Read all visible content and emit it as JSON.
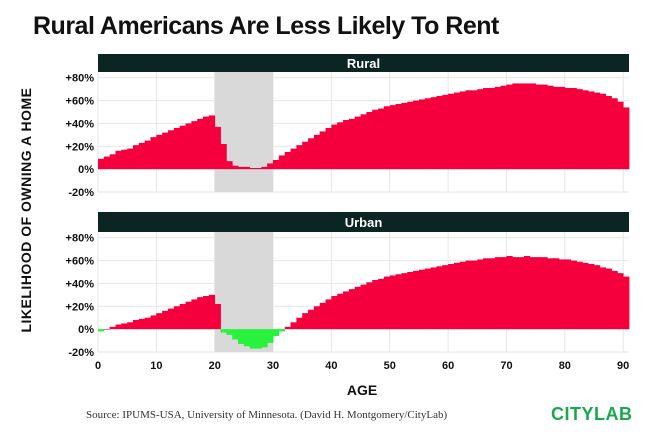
{
  "title": "Rural Americans Are Less Likely To Rent",
  "source": "Source: IPUMS-USA, University of Minnesota. (David H. Montgomery/CityLab)",
  "logo": "CITYLAB",
  "colors": {
    "positive": "#f5003c",
    "negative": "#29f23c",
    "shade": "#d9d9d9",
    "header": "#0b2622",
    "grid": "#e6e6e6"
  },
  "chart_data": [
    {
      "type": "bar",
      "title": "Rural",
      "xlabel": "AGE",
      "ylabel": "LIKELIHOOD OF OWNING A HOME",
      "x_ticks": [
        0,
        10,
        20,
        30,
        40,
        50,
        60,
        70,
        80,
        90
      ],
      "y_ticks": [
        "+80%",
        "+60%",
        "+40%",
        "+20%",
        "0%",
        "-20%"
      ],
      "ylim": [
        -20,
        80
      ],
      "xlim": [
        0,
        91
      ],
      "highlight_range": [
        20,
        30
      ],
      "x": [
        0,
        1,
        2,
        3,
        4,
        5,
        6,
        7,
        8,
        9,
        10,
        11,
        12,
        13,
        14,
        15,
        16,
        17,
        18,
        19,
        20,
        21,
        22,
        23,
        24,
        25,
        26,
        27,
        28,
        29,
        30,
        31,
        32,
        33,
        34,
        35,
        36,
        37,
        38,
        39,
        40,
        41,
        42,
        43,
        44,
        45,
        46,
        47,
        48,
        49,
        50,
        51,
        52,
        53,
        54,
        55,
        56,
        57,
        58,
        59,
        60,
        61,
        62,
        63,
        64,
        65,
        66,
        67,
        68,
        69,
        70,
        71,
        72,
        73,
        74,
        75,
        76,
        77,
        78,
        79,
        80,
        81,
        82,
        83,
        84,
        85,
        86,
        87,
        88,
        89,
        90
      ],
      "values": [
        9,
        11,
        13,
        16,
        17,
        18,
        21,
        23,
        25,
        28,
        30,
        32,
        34,
        36,
        38,
        40,
        42,
        44,
        46,
        47,
        37,
        22,
        7,
        3,
        2,
        2,
        1,
        1,
        2,
        5,
        8,
        12,
        15,
        18,
        21,
        24,
        27,
        30,
        33,
        36,
        39,
        41,
        43,
        44,
        46,
        48,
        50,
        52,
        53,
        55,
        56,
        57,
        58,
        59,
        60,
        61,
        62,
        63,
        64,
        65,
        66,
        67,
        68,
        69,
        69,
        70,
        71,
        71,
        72,
        73,
        74,
        75,
        75,
        75,
        75,
        74,
        74,
        73,
        72,
        72,
        71,
        71,
        70,
        69,
        68,
        67,
        66,
        64,
        62,
        59,
        54
      ]
    },
    {
      "type": "bar",
      "title": "Urban",
      "xlabel": "AGE",
      "ylabel": "LIKELIHOOD OF OWNING A HOME",
      "x_ticks": [
        0,
        10,
        20,
        30,
        40,
        50,
        60,
        70,
        80,
        90
      ],
      "y_ticks": [
        "+80%",
        "+60%",
        "+40%",
        "+20%",
        "0%",
        "-20%"
      ],
      "ylim": [
        -20,
        80
      ],
      "xlim": [
        0,
        91
      ],
      "highlight_range": [
        20,
        30
      ],
      "x": [
        0,
        1,
        2,
        3,
        4,
        5,
        6,
        7,
        8,
        9,
        10,
        11,
        12,
        13,
        14,
        15,
        16,
        17,
        18,
        19,
        20,
        21,
        22,
        23,
        24,
        25,
        26,
        27,
        28,
        29,
        30,
        31,
        32,
        33,
        34,
        35,
        36,
        37,
        38,
        39,
        40,
        41,
        42,
        43,
        44,
        45,
        46,
        47,
        48,
        49,
        50,
        51,
        52,
        53,
        54,
        55,
        56,
        57,
        58,
        59,
        60,
        61,
        62,
        63,
        64,
        65,
        66,
        67,
        68,
        69,
        70,
        71,
        72,
        73,
        74,
        75,
        76,
        77,
        78,
        79,
        80,
        81,
        82,
        83,
        84,
        85,
        86,
        87,
        88,
        89,
        90
      ],
      "values": [
        -2,
        0,
        2,
        4,
        5,
        6,
        8,
        9,
        10,
        12,
        14,
        16,
        18,
        20,
        22,
        24,
        26,
        28,
        29,
        30,
        22,
        -3,
        -5,
        -9,
        -13,
        -15,
        -17,
        -17,
        -16,
        -12,
        -6,
        -2,
        2,
        6,
        10,
        14,
        17,
        20,
        23,
        26,
        29,
        31,
        33,
        35,
        37,
        39,
        41,
        43,
        44,
        46,
        47,
        48,
        49,
        50,
        51,
        52,
        53,
        54,
        55,
        56,
        57,
        58,
        59,
        60,
        60,
        61,
        62,
        62,
        63,
        63,
        64,
        63,
        63,
        64,
        63,
        63,
        63,
        62,
        62,
        61,
        61,
        60,
        59,
        58,
        57,
        56,
        54,
        53,
        51,
        49,
        46
      ]
    }
  ]
}
